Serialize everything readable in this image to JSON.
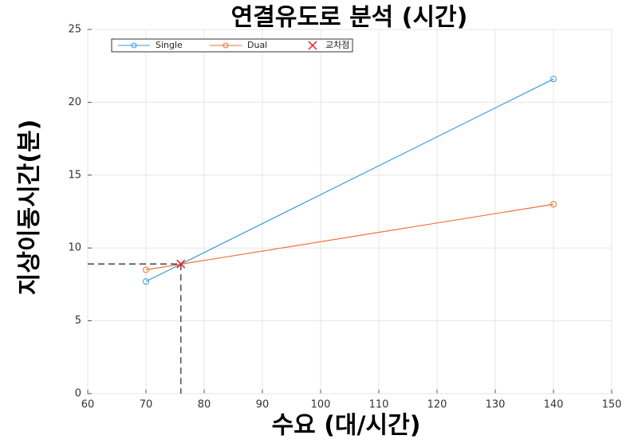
{
  "chart_data": {
    "type": "line",
    "title": "연결유도로 분석 (시간)",
    "xlabel": "수요 (대/시간)",
    "ylabel": "지상이동시간(분)",
    "x": [
      70,
      140
    ],
    "series": [
      {
        "name": "Single",
        "color": "#3a9ad9",
        "values": [
          7.7,
          21.6
        ]
      },
      {
        "name": "Dual",
        "color": "#f0703a",
        "values": [
          8.5,
          13.0
        ]
      }
    ],
    "intersection": {
      "name": "교차점",
      "color": "#e8202a",
      "x": 76,
      "y": 8.9
    },
    "xlim": [
      60,
      150
    ],
    "xticks": [
      60,
      70,
      80,
      90,
      100,
      110,
      120,
      130,
      140,
      150
    ],
    "ylim": [
      0,
      25
    ],
    "yticks": [
      0,
      5,
      10,
      15,
      20,
      25
    ],
    "grid": true,
    "legend": "upper left"
  }
}
